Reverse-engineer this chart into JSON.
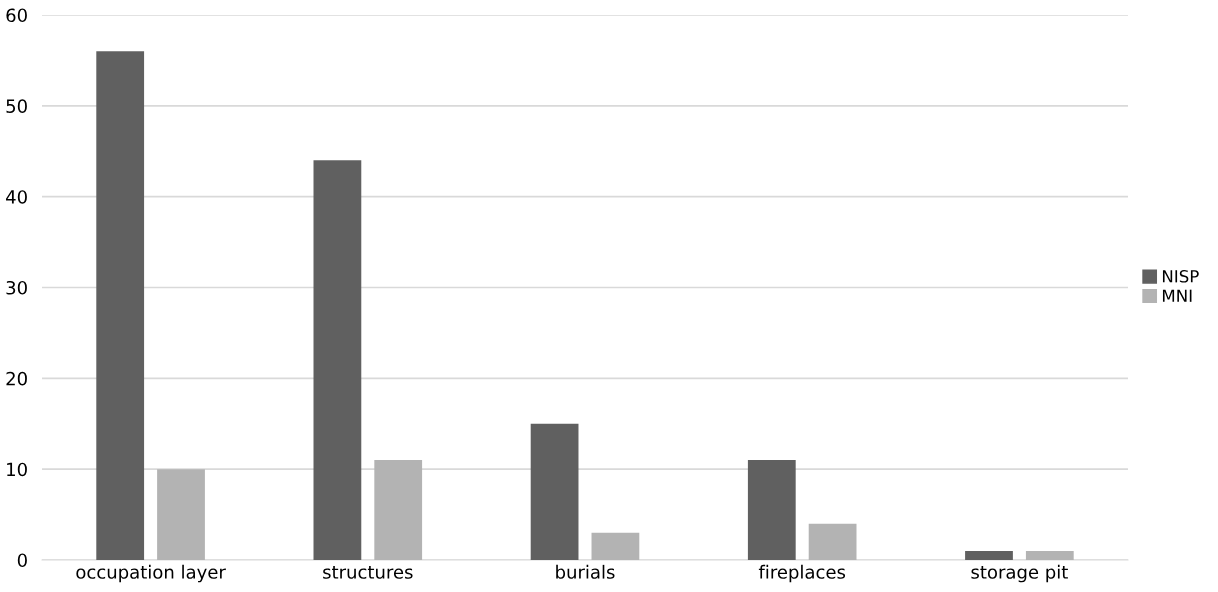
{
  "chart_data": {
    "type": "bar",
    "categories": [
      "occupation layer",
      "structures",
      "burials",
      "fireplaces",
      "storage pit"
    ],
    "series": [
      {
        "name": "NISP",
        "color": "#606060",
        "values": [
          56,
          44,
          15,
          11,
          1
        ]
      },
      {
        "name": "MNI",
        "color": "#b3b3b3",
        "values": [
          10,
          11,
          3,
          4,
          1
        ]
      }
    ],
    "ylim": [
      0,
      60
    ],
    "yticks": [
      0,
      10,
      20,
      30,
      40,
      50,
      60
    ],
    "grid": "y",
    "legend": "right"
  }
}
